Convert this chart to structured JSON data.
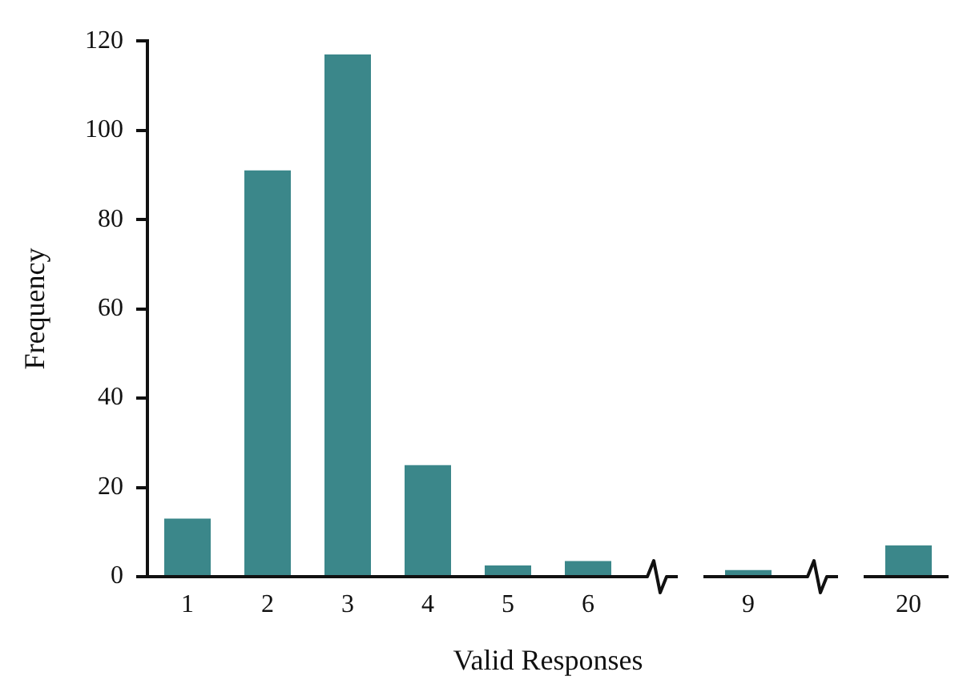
{
  "chart_data": {
    "type": "bar",
    "xlabel": "Valid Responses",
    "ylabel": "Frequency",
    "categories": [
      "1",
      "2",
      "3",
      "4",
      "5",
      "6",
      null,
      "9",
      null,
      "20"
    ],
    "values": [
      13,
      91,
      117,
      25,
      2.5,
      3.5,
      null,
      1.5,
      null,
      7
    ],
    "color": "#3b878a",
    "ylim": [
      0,
      120
    ],
    "yticks": [
      0,
      20,
      40,
      60,
      80,
      100,
      120
    ],
    "grid": false,
    "legend": false
  }
}
